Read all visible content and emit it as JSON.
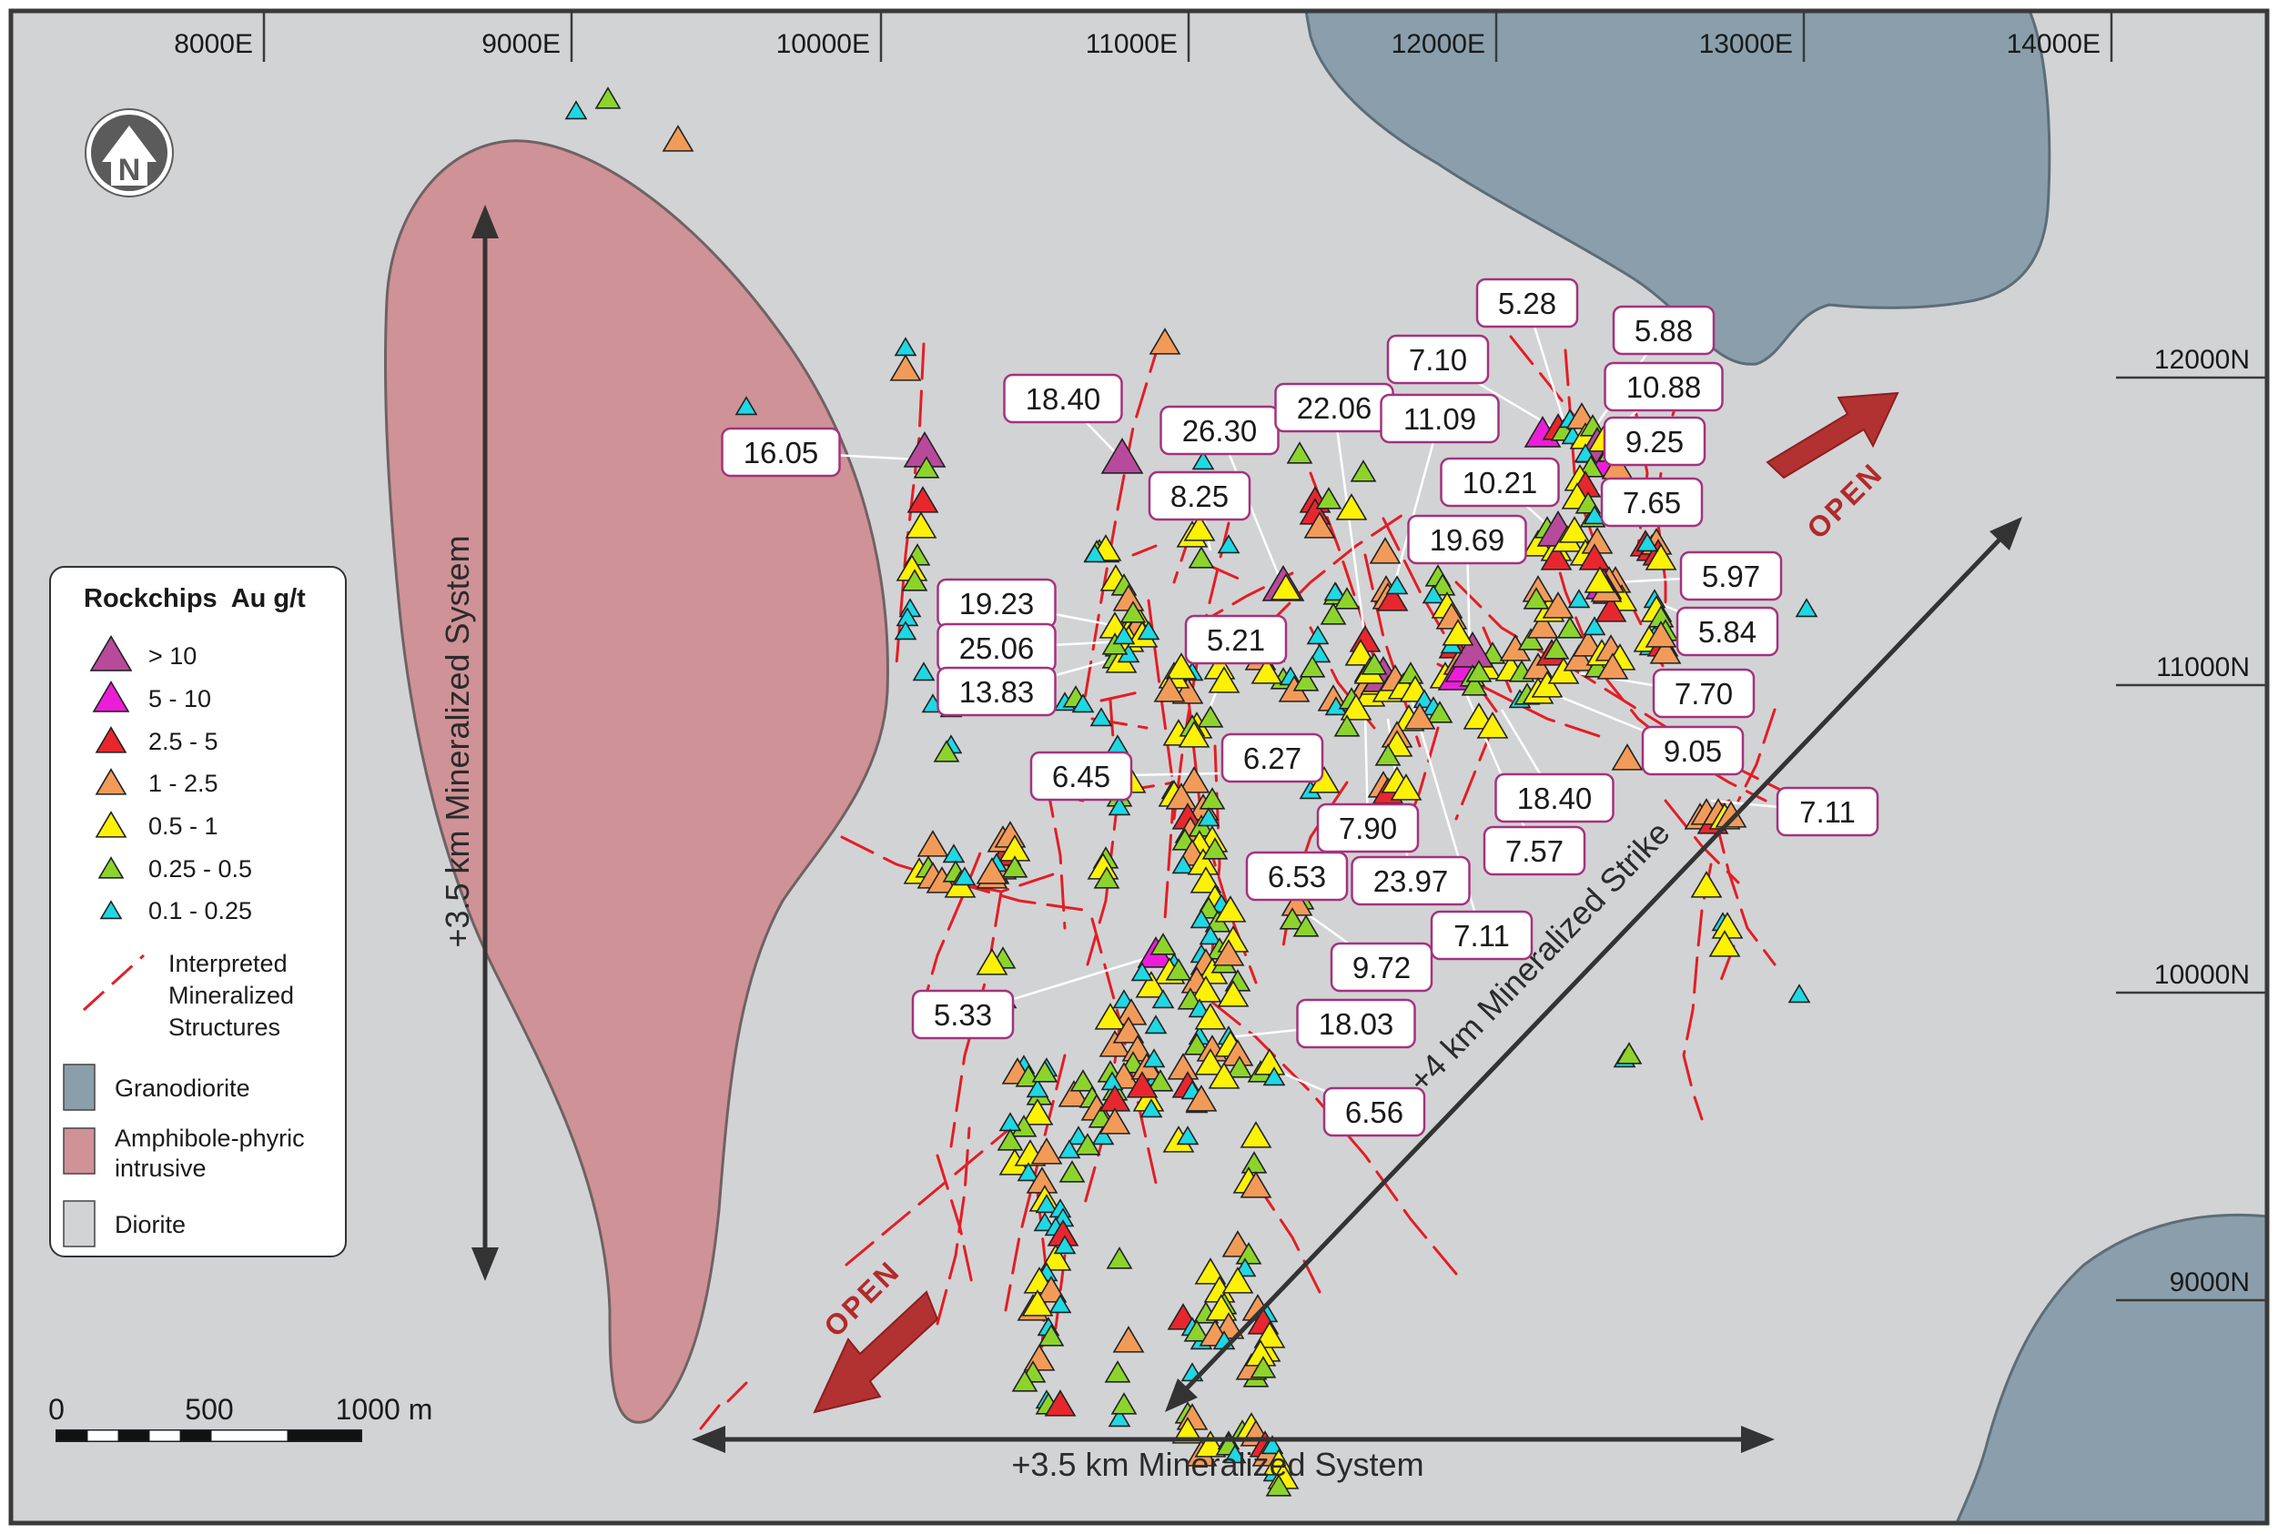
{
  "colors": {
    "diorite": "#d2d3d5",
    "granodiorite": "#8a9fab",
    "intrusive": "#cf9297",
    "structure": "#e31e24",
    "frame": "#3a3a3a",
    "open_arrow": "#b23131"
  },
  "grid": {
    "eastings": [
      "8000E",
      "9000E",
      "10000E",
      "11000E",
      "12000E",
      "13000E",
      "14000E"
    ],
    "northings": [
      "12000N",
      "11000N",
      "10000N",
      "9000N"
    ]
  },
  "north_arrow": {
    "letter": "N"
  },
  "legend": {
    "title": "Rockchips  Au g/t",
    "grades": [
      {
        "label": "> 10",
        "color": "#b84a9c",
        "size": "xl"
      },
      {
        "label": "5 - 10",
        "color": "#ec1dd9",
        "size": "l"
      },
      {
        "label": "2.5 - 5",
        "color": "#e8262e",
        "size": "m"
      },
      {
        "label": "1 - 2.5",
        "color": "#f29b59",
        "size": "m"
      },
      {
        "label": "0.5 - 1",
        "color": "#fdf105",
        "size": "m"
      },
      {
        "label": "0.25 - 0.5",
        "color": "#8cd42b",
        "size": "s"
      },
      {
        "label": "0.1 - 0.25",
        "color": "#1ed8e4",
        "size": "xs"
      }
    ],
    "structures": [
      "Interpreted",
      "Mineralized",
      "Structures"
    ],
    "units": [
      {
        "lines": [
          "Granodiorite"
        ],
        "color": "#8a9fab"
      },
      {
        "lines": [
          "Amphibole-phyric",
          "intrusive"
        ],
        "color": "#cf9297"
      },
      {
        "lines": [
          "Diorite"
        ],
        "color": "#d2d3d5"
      }
    ]
  },
  "scale_bar": {
    "labels": [
      "0",
      "500",
      "1000 m"
    ]
  },
  "annotations": {
    "vertical_system": "+3.5 km Mineralized System",
    "horizontal_system": "+3.5 km Mineralized System",
    "strike": "+4 km Mineralized Strike",
    "open_ne": "OPEN",
    "open_sw": "OPEN"
  },
  "grade_labels": [
    "16.05",
    "18.40",
    "26.30",
    "8.25",
    "22.06",
    "11.09",
    "19.23",
    "25.06",
    "13.83",
    "5.21",
    "6.45",
    "6.27",
    "7.90",
    "23.97",
    "6.53",
    "9.72",
    "7.11",
    "5.33",
    "18.03",
    "6.56",
    "5.28",
    "7.10",
    "5.88",
    "10.88",
    "9.25",
    "10.21",
    "7.65",
    "19.69",
    "5.97",
    "5.84",
    "7.70",
    "9.05",
    "18.40",
    "7.57",
    "7.11"
  ]
}
